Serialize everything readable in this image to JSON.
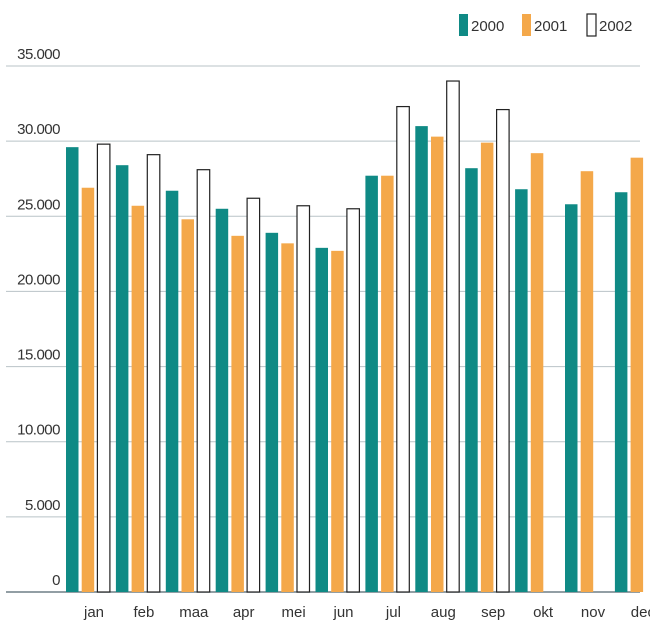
{
  "chart_data": {
    "type": "bar",
    "categories": [
      "jan",
      "feb",
      "maa",
      "apr",
      "mei",
      "jun",
      "jul",
      "aug",
      "sep",
      "okt",
      "nov",
      "dec"
    ],
    "series": [
      {
        "name": "2000",
        "color": "#0f8a85",
        "values": [
          29600,
          28400,
          26700,
          25500,
          23900,
          22900,
          27700,
          31000,
          28200,
          26800,
          25800,
          26600
        ]
      },
      {
        "name": "2001",
        "color": "#f4a84a",
        "values": [
          26900,
          25700,
          24800,
          23700,
          23200,
          22700,
          27700,
          30300,
          29900,
          29200,
          28000,
          28900
        ]
      },
      {
        "name": "2002",
        "color": "#ffffff",
        "values": [
          29800,
          29100,
          28100,
          26200,
          25700,
          25500,
          32300,
          34000,
          32100,
          null,
          null,
          null
        ]
      }
    ],
    "ylim": [
      0,
      35000
    ],
    "yticks": [
      0,
      5000,
      10000,
      15000,
      20000,
      25000,
      30000,
      35000
    ],
    "ytick_labels": [
      "0",
      "5.000",
      "10.000",
      "15.000",
      "20.000",
      "25.000",
      "30.000",
      "35.000"
    ],
    "grid": true,
    "legend_position": "top-right",
    "title": "",
    "xlabel": "",
    "ylabel": ""
  }
}
